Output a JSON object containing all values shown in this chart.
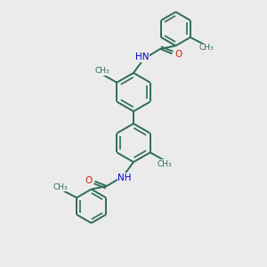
{
  "bg_color": "#ebebeb",
  "bond_color": "#2d6b5a",
  "N_color": "#0000cc",
  "O_color": "#cc2200",
  "lw": 1.4,
  "dbo": 0.055,
  "r": 0.72,
  "figsize": [
    3.0,
    3.0
  ],
  "dpi": 100,
  "xlim": [
    0,
    10
  ],
  "ylim": [
    0,
    10
  ]
}
